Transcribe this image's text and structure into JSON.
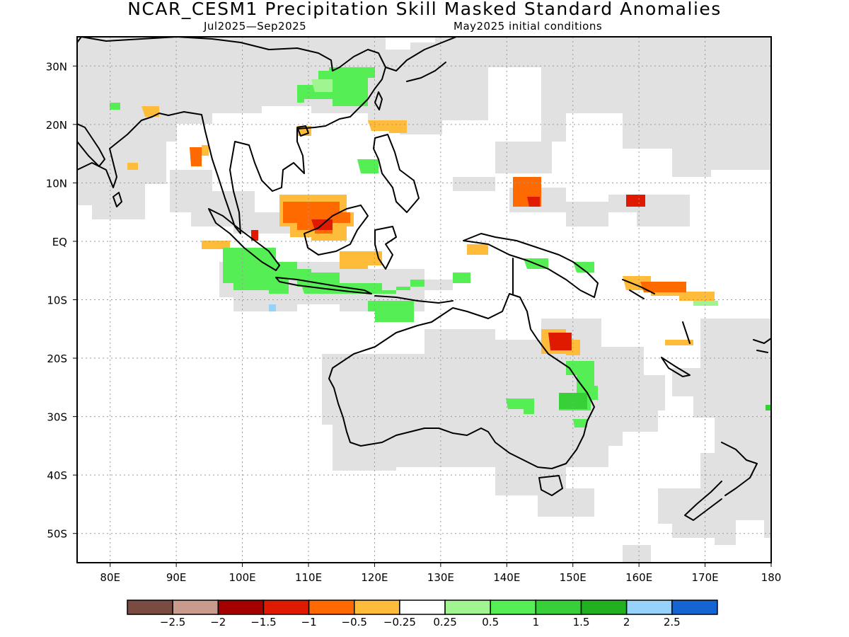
{
  "title": "NCAR_CESM1 Precipitation Skill Masked Standard Anomalies",
  "subtitle_left": "Jul2025—Sep2025",
  "subtitle_right": "May2025 initial conditions",
  "map": {
    "lon_range": [
      75,
      180
    ],
    "lat_range": [
      -55,
      35
    ],
    "x_ticks": [
      {
        "lon": 80,
        "label": "80E"
      },
      {
        "lon": 90,
        "label": "90E"
      },
      {
        "lon": 100,
        "label": "100E"
      },
      {
        "lon": 110,
        "label": "110E"
      },
      {
        "lon": 120,
        "label": "120E"
      },
      {
        "lon": 130,
        "label": "130E"
      },
      {
        "lon": 140,
        "label": "140E"
      },
      {
        "lon": 150,
        "label": "150E"
      },
      {
        "lon": 160,
        "label": "160E"
      },
      {
        "lon": 170,
        "label": "170E"
      },
      {
        "lon": 180,
        "label": "180"
      }
    ],
    "y_ticks": [
      {
        "lat": 30,
        "label": "30N"
      },
      {
        "lat": 20,
        "label": "20N"
      },
      {
        "lat": 10,
        "label": "10N"
      },
      {
        "lat": 0,
        "label": "EQ"
      },
      {
        "lat": -10,
        "label": "10S"
      },
      {
        "lat": -20,
        "label": "20S"
      },
      {
        "lat": -30,
        "label": "30S"
      },
      {
        "lat": -40,
        "label": "40S"
      },
      {
        "lat": -50,
        "label": "50S"
      }
    ],
    "colors": {
      "mask": "#e1e1e1",
      "neg_25": "#7a4b40",
      "neg_20": "#c99b8c",
      "neg_15": "#a50000",
      "neg_10": "#e01a00",
      "neg_05": "#ff6a00",
      "neg_025": "#ffbb3a",
      "neutral": "#ffffff",
      "pos_025": "#a0f590",
      "pos_05": "#55ee55",
      "pos_10": "#38d038",
      "pos_15": "#20b020",
      "pos_20": "#96d2fa",
      "pos_25": "#1464d2"
    }
  },
  "colorbar": {
    "colors": [
      "#7a4b40",
      "#c99b8c",
      "#a50000",
      "#e01a00",
      "#ff6a00",
      "#ffbb3a",
      "#ffffff",
      "#a0f590",
      "#55ee55",
      "#38d038",
      "#20b020",
      "#96d2fa",
      "#1464d2"
    ],
    "labels": [
      "−2.5",
      "−2",
      "−1.5",
      "−1",
      "−0.5",
      "−0.25",
      "0.25",
      "0.5",
      "1",
      "1.5",
      "2",
      "2.5"
    ]
  }
}
